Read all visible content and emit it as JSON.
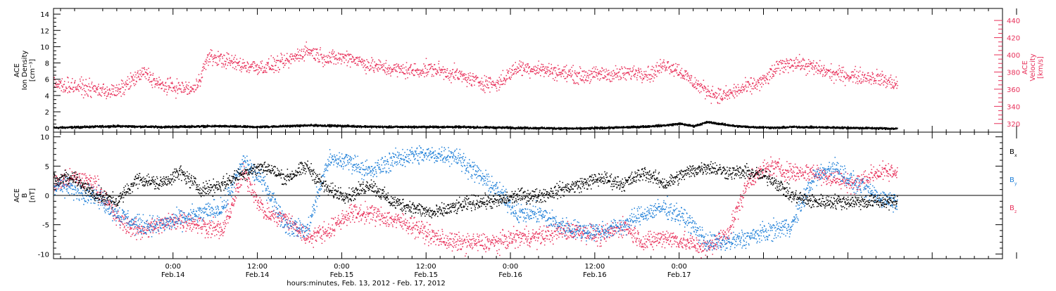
{
  "colors": {
    "black": "#000000",
    "pink": "#e8305a",
    "blue": "#1e7fd8"
  },
  "chart_data": [
    {
      "type": "scatter",
      "panel": "top",
      "ylabel_lines": [
        "ACE",
        "Ion Density",
        "[cm⁻³]"
      ],
      "yticks": [
        "0",
        "2",
        "4",
        "6",
        "8",
        "10",
        "12",
        "14"
      ],
      "ylim": [
        -0.5,
        14.7
      ],
      "right_ylabel_lines": [
        "ACE",
        "Velocity",
        "[km/s]"
      ],
      "right_yticks": [
        "320",
        "340",
        "360",
        "380",
        "400",
        "420",
        "440"
      ],
      "right_ylim": [
        310,
        454
      ],
      "grid": false,
      "series": [
        {
          "name": "density",
          "color_key": "black",
          "axis": "left",
          "x_hours": [
            -17,
            -8,
            -2,
            6,
            12,
            20,
            30,
            40,
            48,
            58,
            62,
            66,
            70,
            72,
            74,
            76,
            80,
            82,
            86,
            88,
            96,
            103
          ],
          "y": [
            0.1,
            0.3,
            0.2,
            0.3,
            0.2,
            0.4,
            0.2,
            0.2,
            0.1,
            0.0,
            0.1,
            0.2,
            0.4,
            0.6,
            0.3,
            0.8,
            0.3,
            0.2,
            0.1,
            0.2,
            0.1,
            0.0
          ]
        },
        {
          "name": "velocity",
          "color_key": "pink",
          "axis": "right",
          "x_hours": [
            -17,
            -14,
            -11,
            -8,
            -6,
            -4,
            -2,
            1,
            3,
            5,
            7,
            10,
            13,
            16,
            19,
            22,
            25,
            28,
            31,
            34,
            37,
            40,
            43,
            46,
            49,
            52,
            55,
            58,
            61,
            64,
            66,
            68,
            70,
            72,
            74,
            76,
            78,
            80,
            82,
            84,
            86,
            88,
            91,
            94,
            97,
            100,
            103
          ],
          "y": [
            366,
            364,
            360,
            357,
            370,
            380,
            365,
            362,
            360,
            398,
            395,
            388,
            386,
            392,
            406,
            396,
            398,
            388,
            384,
            382,
            384,
            378,
            370,
            366,
            386,
            384,
            380,
            376,
            378,
            378,
            381,
            378,
            390,
            382,
            368,
            358,
            352,
            358,
            364,
            370,
            386,
            392,
            386,
            378,
            376,
            374,
            366
          ]
        }
      ]
    },
    {
      "type": "scatter",
      "panel": "bottom",
      "ylabel_lines": [
        "ACE",
        "B",
        "[nT]"
      ],
      "yticks": [
        "-10",
        "-5",
        "0",
        "5",
        "10"
      ],
      "ylim": [
        -10.8,
        10.8
      ],
      "grid": false,
      "legend_position": "right",
      "legend": [
        {
          "name": "B",
          "sub": "x",
          "color_key": "black"
        },
        {
          "name": "B",
          "sub": "y",
          "color_key": "blue"
        },
        {
          "name": "B",
          "sub": "z",
          "color_key": "pink"
        }
      ],
      "series": [
        {
          "name": "Bx",
          "color_key": "black",
          "x_hours": [
            -17,
            -14,
            -11,
            -8,
            -5,
            -2,
            1,
            4,
            7,
            10,
            13,
            16,
            19,
            22,
            25,
            28,
            31,
            34,
            37,
            40,
            43,
            46,
            49,
            52,
            55,
            58,
            61,
            64,
            67,
            70,
            73,
            76,
            79,
            82,
            85,
            88,
            91,
            94,
            97,
            100,
            103
          ],
          "y": [
            3,
            3,
            0,
            -1,
            3,
            2,
            4,
            1,
            2,
            4,
            5,
            3,
            5,
            1,
            0,
            2,
            -1,
            -2,
            -3,
            -2,
            -1,
            -1,
            0,
            0,
            1,
            2,
            3,
            2,
            4,
            2,
            4,
            5,
            4,
            4,
            3,
            0,
            -1,
            -1,
            -1,
            -1,
            -1
          ]
        },
        {
          "name": "By",
          "color_key": "blue",
          "x_hours": [
            -17,
            -14,
            -11,
            -8,
            -5,
            -2,
            1,
            4,
            7,
            10,
            13,
            16,
            19,
            22,
            25,
            28,
            31,
            34,
            37,
            40,
            43,
            46,
            49,
            52,
            55,
            58,
            61,
            64,
            67,
            70,
            73,
            76,
            79,
            82,
            85,
            88,
            91,
            94,
            97,
            100,
            103
          ],
          "y": [
            2,
            1,
            0,
            -3,
            -5,
            -5,
            -4,
            -3,
            -2,
            6,
            2,
            -5,
            -6,
            6,
            6,
            4,
            6,
            7,
            7,
            7,
            4,
            1,
            -3,
            -3,
            -5,
            -6,
            -6,
            -5,
            -3,
            -2,
            -4,
            -8,
            -8,
            -7,
            -6,
            -5,
            3,
            5,
            2,
            0,
            -1
          ]
        },
        {
          "name": "Bz",
          "color_key": "pink",
          "x_hours": [
            -17,
            -14,
            -11,
            -8,
            -5,
            -2,
            1,
            4,
            7,
            10,
            13,
            16,
            19,
            22,
            25,
            28,
            31,
            34,
            37,
            40,
            43,
            46,
            49,
            52,
            55,
            58,
            61,
            64,
            67,
            70,
            73,
            76,
            79,
            82,
            85,
            88,
            91,
            94,
            97,
            100,
            103
          ],
          "y": [
            2,
            3,
            2,
            -4,
            -6,
            -5,
            -4,
            -5,
            -6,
            4,
            -3,
            -4,
            -7,
            -6,
            -3,
            -3,
            -4,
            -5,
            -7,
            -8,
            -8,
            -8,
            -7,
            -7,
            -6,
            -6,
            -7,
            -5,
            -8,
            -7,
            -8,
            -9,
            -6,
            3,
            5,
            4,
            4,
            3,
            2,
            4,
            4
          ]
        }
      ]
    }
  ],
  "x_axis": {
    "range_hours": [
      -17,
      118
    ],
    "gap_hours": [
      103,
      110
    ],
    "tick_hours": [
      0,
      12,
      24,
      36,
      48,
      60,
      72,
      84,
      96,
      108,
      120
    ],
    "tick_labels": [
      {
        "hours": 0,
        "time": "0:00",
        "date": "Feb.14"
      },
      {
        "hours": 12,
        "time": "12:00",
        "date": "Feb.14"
      },
      {
        "hours": 24,
        "time": "0:00",
        "date": "Feb.15"
      },
      {
        "hours": 36,
        "time": "12:00",
        "date": "Feb.15"
      },
      {
        "hours": 48,
        "time": "0:00",
        "date": "Feb.16"
      },
      {
        "hours": 60,
        "time": "12:00",
        "date": "Feb.16"
      },
      {
        "hours": 72,
        "time": "0:00",
        "date": "Feb.17"
      }
    ],
    "xlabel": "hours:minutes, Feb. 13, 2012 - Feb. 17, 2012"
  }
}
